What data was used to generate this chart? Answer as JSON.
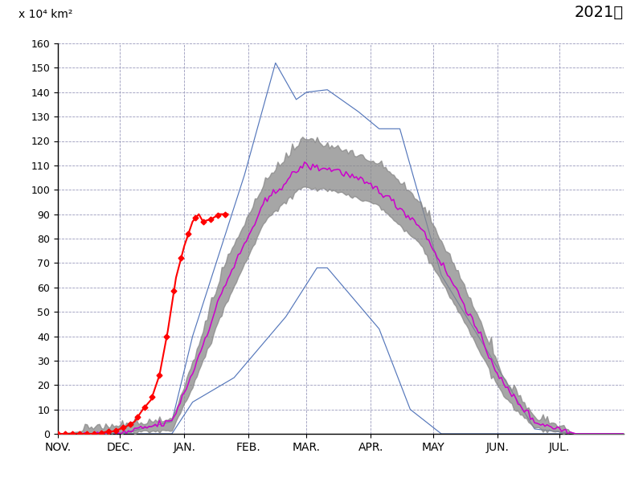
{
  "title_year": "2021年",
  "ylabel": "x 10⁴ km²",
  "ylim": [
    0,
    160
  ],
  "yticks": [
    0,
    10,
    20,
    30,
    40,
    50,
    60,
    70,
    80,
    90,
    100,
    110,
    120,
    130,
    140,
    150,
    160
  ],
  "months": [
    "NOV.",
    "DEC.",
    "JAN.",
    "FEB.",
    "MAR.",
    "APR.",
    "MAY",
    "JUN.",
    "JUL."
  ],
  "days_in_months": [
    30,
    31,
    31,
    28,
    31,
    30,
    31,
    30,
    31
  ],
  "background_color": "#ffffff",
  "grid_color": "#9999bb",
  "shade_color": "#888888",
  "mean_color": "#cc00cc",
  "current_color": "#ff0000",
  "envelope_color": "#5577bb"
}
